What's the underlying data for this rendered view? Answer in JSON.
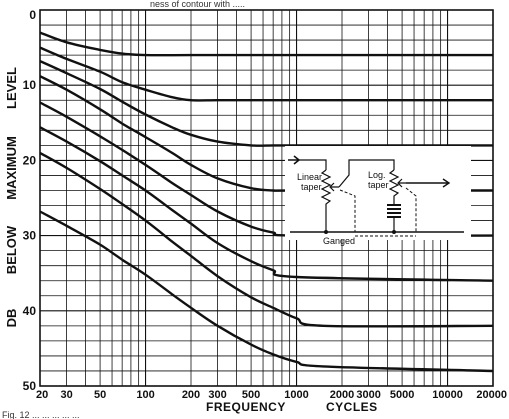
{
  "header_text": "ness of contour with .....",
  "caption_text": "Fig. 12 ... ... ... ... ...",
  "chart_data": {
    "type": "line",
    "xlabel_parts": [
      "FREQUENCY",
      "CYCLES"
    ],
    "ylabel_parts": [
      "DB",
      "BELOW",
      "MAXIMUM",
      "LEVEL"
    ],
    "x_scale": "log",
    "xlim": [
      20,
      20000
    ],
    "ylim": [
      0,
      50
    ],
    "y_inverted": true,
    "grid": true,
    "x_ticks": [
      20,
      30,
      50,
      100,
      200,
      300,
      500,
      1000,
      2000,
      3000,
      5000,
      10000,
      20000
    ],
    "x_tick_labels": [
      "20",
      "30",
      "50",
      "100",
      "200",
      "300",
      "500",
      "1000",
      "2000",
      "3000",
      "5000",
      "10000",
      "20000"
    ],
    "y_ticks": [
      0,
      10,
      20,
      30,
      40,
      50
    ],
    "y_tick_labels": [
      "0",
      "10",
      "20",
      "30",
      "40",
      "50"
    ],
    "series": [
      {
        "x": [
          20,
          30,
          50,
          70,
          100,
          200,
          500,
          1000,
          20000
        ],
        "y": [
          3,
          4.3,
          5.3,
          5.8,
          6,
          6,
          6,
          6,
          6
        ]
      },
      {
        "x": [
          20,
          30,
          50,
          70,
          100,
          150,
          200,
          300,
          500,
          1000,
          20000
        ],
        "y": [
          5,
          6.5,
          8.2,
          9.6,
          10.6,
          11.6,
          12,
          12,
          12,
          12,
          12
        ]
      },
      {
        "x": [
          20,
          30,
          50,
          70,
          100,
          150,
          200,
          300,
          500,
          700,
          1000,
          20000
        ],
        "y": [
          6.8,
          8.4,
          10.5,
          12.2,
          13.9,
          15.6,
          16.6,
          17.5,
          18,
          18,
          18,
          18
        ]
      },
      {
        "x": [
          20,
          30,
          50,
          70,
          100,
          150,
          200,
          300,
          500,
          700,
          1000,
          20000
        ],
        "y": [
          8.8,
          10.6,
          13.2,
          15.1,
          16.9,
          19,
          20.6,
          22.4,
          23.7,
          24,
          24,
          24
        ]
      },
      {
        "x": [
          20,
          30,
          50,
          70,
          100,
          150,
          200,
          300,
          500,
          700,
          1000,
          20000
        ],
        "y": [
          12.3,
          14.2,
          16.8,
          18.6,
          20.6,
          23,
          24.6,
          26.8,
          28.8,
          29.6,
          30,
          30
        ]
      },
      {
        "x": [
          20,
          30,
          50,
          70,
          100,
          150,
          200,
          300,
          500,
          700,
          1000,
          20000
        ],
        "y": [
          15.6,
          17.5,
          20.1,
          22,
          24,
          26.6,
          28.4,
          31,
          33.4,
          34.6,
          35.5,
          36
        ]
      },
      {
        "x": [
          20,
          30,
          50,
          70,
          100,
          150,
          200,
          300,
          500,
          700,
          1000,
          1500,
          20000
        ],
        "y": [
          19,
          21,
          23.8,
          25.8,
          28,
          30.8,
          32.7,
          35.4,
          38.2,
          39.6,
          41,
          42,
          42
        ]
      },
      {
        "x": [
          20,
          30,
          50,
          70,
          100,
          150,
          200,
          300,
          500,
          700,
          1000,
          1500,
          20000
        ],
        "y": [
          26.8,
          28.7,
          31.2,
          33.2,
          35.2,
          37.8,
          39.6,
          42,
          44.5,
          45.8,
          46.8,
          47.4,
          48
        ]
      }
    ]
  },
  "inset": {
    "linear_label_1": "Linear",
    "linear_label_2": "taper",
    "log_label_1": "Log.",
    "log_label_2": "taper",
    "ganged_label": "Ganged"
  }
}
